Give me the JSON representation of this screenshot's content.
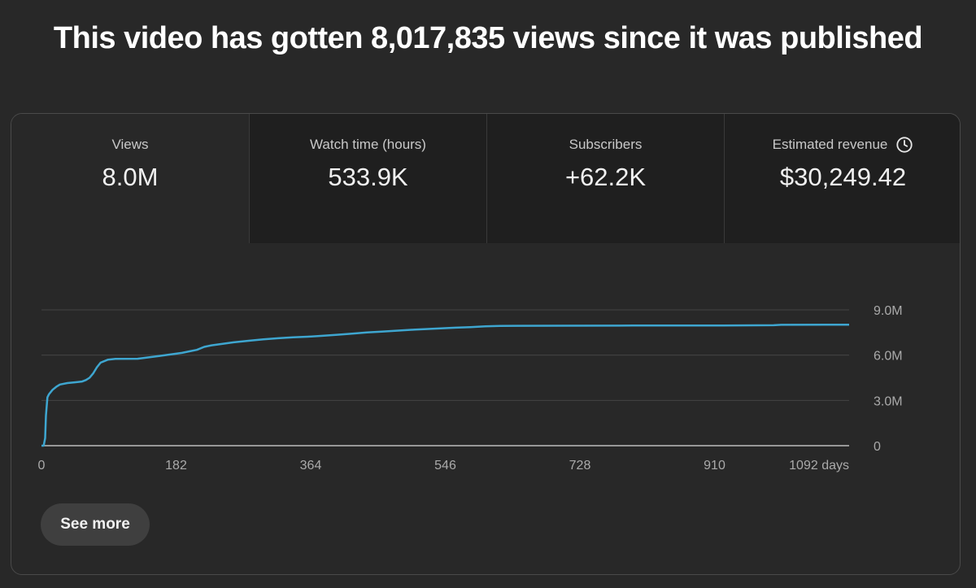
{
  "headline": "This video has gotten 8,017,835 views since it was published",
  "metrics": [
    {
      "label": "Views",
      "value": "8.0M"
    },
    {
      "label": "Watch time (hours)",
      "value": "533.9K"
    },
    {
      "label": "Subscribers",
      "value": "+62.2K"
    },
    {
      "label": "Estimated revenue",
      "value": "$30,249.42"
    }
  ],
  "see_more_label": "See more",
  "colors": {
    "line": "#3ea6d0",
    "background": "#282828",
    "grid": "#444444",
    "axis": "#aaaaaa"
  },
  "chart_data": {
    "type": "line",
    "xlabel": "",
    "ylabel": "",
    "x_ticks": [
      0,
      182,
      364,
      546,
      728,
      910,
      1092
    ],
    "x_tick_labels": [
      "0",
      "182",
      "364",
      "546",
      "728",
      "910",
      "1092 days"
    ],
    "y_ticks": [
      0,
      3000000,
      6000000,
      9000000
    ],
    "y_tick_labels": [
      "0",
      "3.0M",
      "6.0M",
      "9.0M"
    ],
    "xlim": [
      0,
      1092
    ],
    "ylim": [
      0,
      9000000
    ],
    "legend": "none",
    "grid": true,
    "series": [
      {
        "color": "#3ea6d0",
        "points": [
          [
            0,
            0
          ],
          [
            3,
            0
          ],
          [
            5,
            500000
          ],
          [
            6,
            2000000
          ],
          [
            8,
            3200000
          ],
          [
            10,
            3400000
          ],
          [
            15,
            3700000
          ],
          [
            20,
            3900000
          ],
          [
            25,
            4050000
          ],
          [
            35,
            4150000
          ],
          [
            45,
            4200000
          ],
          [
            55,
            4250000
          ],
          [
            60,
            4350000
          ],
          [
            65,
            4500000
          ],
          [
            70,
            4800000
          ],
          [
            75,
            5200000
          ],
          [
            80,
            5500000
          ],
          [
            90,
            5700000
          ],
          [
            100,
            5750000
          ],
          [
            130,
            5760000
          ],
          [
            145,
            5850000
          ],
          [
            160,
            5950000
          ],
          [
            175,
            6050000
          ],
          [
            190,
            6150000
          ],
          [
            200,
            6250000
          ],
          [
            210,
            6350000
          ],
          [
            220,
            6550000
          ],
          [
            230,
            6650000
          ],
          [
            245,
            6750000
          ],
          [
            260,
            6850000
          ],
          [
            280,
            6950000
          ],
          [
            300,
            7050000
          ],
          [
            320,
            7120000
          ],
          [
            340,
            7180000
          ],
          [
            360,
            7220000
          ],
          [
            380,
            7280000
          ],
          [
            400,
            7350000
          ],
          [
            420,
            7420000
          ],
          [
            440,
            7500000
          ],
          [
            460,
            7560000
          ],
          [
            480,
            7620000
          ],
          [
            500,
            7680000
          ],
          [
            520,
            7730000
          ],
          [
            540,
            7770000
          ],
          [
            560,
            7820000
          ],
          [
            580,
            7860000
          ],
          [
            600,
            7910000
          ],
          [
            620,
            7940000
          ],
          [
            700,
            7950000
          ],
          [
            800,
            7960000
          ],
          [
            900,
            7960000
          ],
          [
            990,
            7980000
          ],
          [
            1000,
            8010000
          ],
          [
            1092,
            8017835
          ]
        ]
      }
    ]
  }
}
